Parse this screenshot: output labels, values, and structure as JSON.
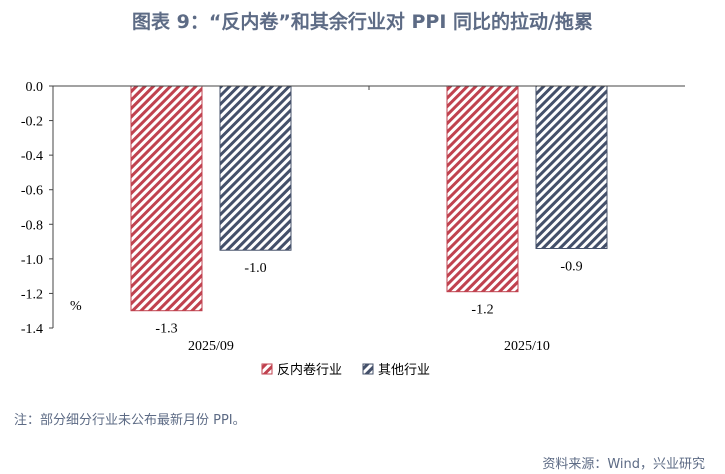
{
  "title": "图表 9：“反内卷”和其余行业对 PPI 同比的拉动/拖累",
  "note": "注：部分细分行业未公布最新月份 PPI。",
  "source": "资料来源：Wind，兴业研究",
  "chart_data": {
    "type": "bar",
    "categories": [
      "2025/09",
      "2025/10"
    ],
    "ylabel": "%",
    "ylim": [
      -1.4,
      0.0
    ],
    "yticks": [
      "0.0",
      "-0.2",
      "-0.4",
      "-0.6",
      "-0.8",
      "-1.0",
      "-1.2",
      "-1.4"
    ],
    "grid": false,
    "legend": "bottom",
    "series": [
      {
        "name": "反内卷行业",
        "color": "#c0424f",
        "values": [
          -1.3,
          -1.19
        ],
        "labels": [
          "-1.3",
          "-1.2"
        ]
      },
      {
        "name": "其他行业",
        "color": "#44506a",
        "values": [
          -0.95,
          -0.94
        ],
        "labels": [
          "-1.0",
          "-0.9"
        ]
      }
    ]
  }
}
